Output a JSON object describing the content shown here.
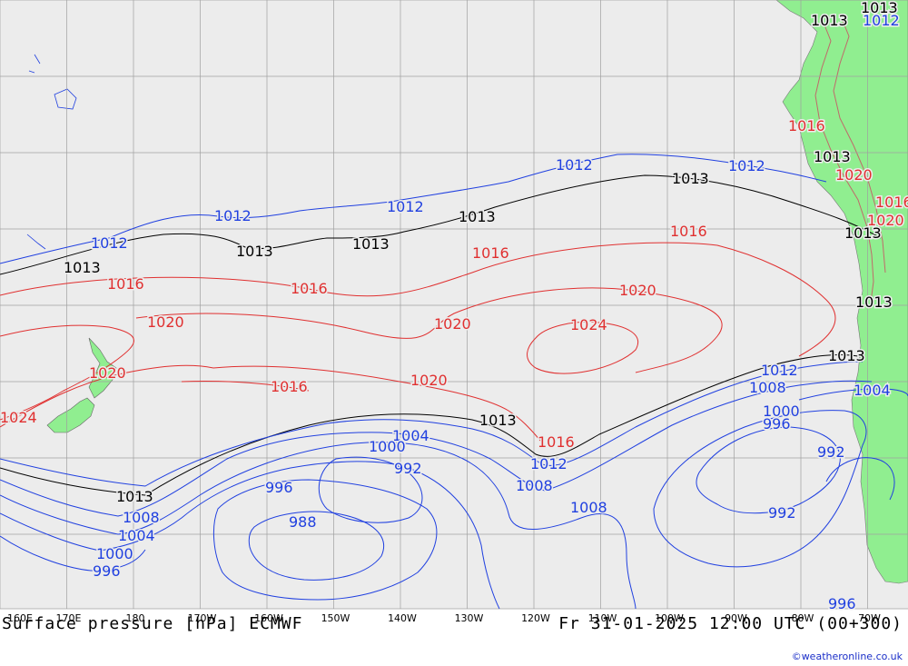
{
  "footer": {
    "title": "Surface pressure [hPa] ECMWF",
    "valid_time": "Fr 31-01-2025 12:00 UTC (00+300)",
    "credit": "©weatheronline.co.uk"
  },
  "colors": {
    "ocean": "#ececec",
    "land": "#90ee90",
    "grid": "#a0a0a0",
    "high": "#e03030",
    "low": "#2040e0",
    "normal": "#000000"
  },
  "lon_labels": [
    "160E",
    "170E",
    "180",
    "170W",
    "160W",
    "150W",
    "140W",
    "130W",
    "120W",
    "110W",
    "100W",
    "90W",
    "80W",
    "70W"
  ],
  "isobars": [
    {
      "value": 1024,
      "class": "high"
    },
    {
      "value": 1020,
      "class": "high"
    },
    {
      "value": 1016,
      "class": "high"
    },
    {
      "value": 1013,
      "class": "normal"
    },
    {
      "value": 1012,
      "class": "low"
    },
    {
      "value": 1008,
      "class": "low"
    },
    {
      "value": 1004,
      "class": "low"
    },
    {
      "value": 1000,
      "class": "low"
    },
    {
      "value": 996,
      "class": "low"
    },
    {
      "value": 992,
      "class": "low"
    },
    {
      "value": 988,
      "class": "low"
    }
  ]
}
